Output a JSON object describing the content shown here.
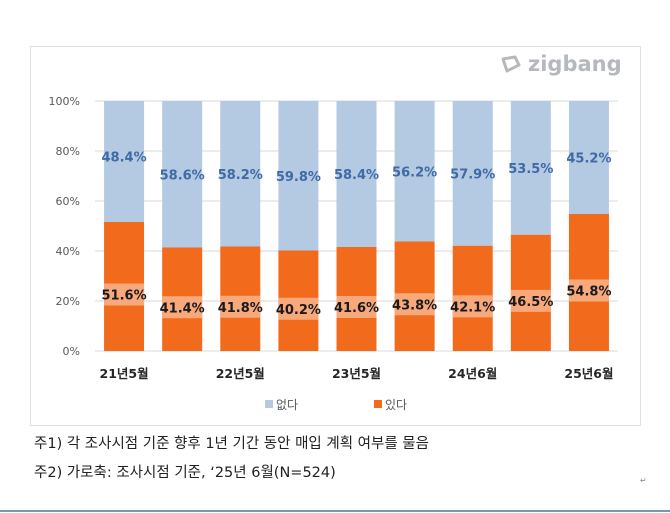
{
  "logo": {
    "text": "zigbang"
  },
  "chart_data": {
    "type": "bar",
    "stacked": true,
    "categories": [
      "21년5월",
      "",
      "22년5월",
      "",
      "23년5월",
      "",
      "24년6월",
      "",
      "25년6월"
    ],
    "series": [
      {
        "name": "있다",
        "color": "#f26b1d",
        "values": [
          51.6,
          41.4,
          41.8,
          40.2,
          41.6,
          43.8,
          42.1,
          46.5,
          54.8
        ],
        "labels": [
          "51.6%",
          "41.4%",
          "41.8%",
          "40.2%",
          "41.6%",
          "43.8%",
          "42.1%",
          "46.5%",
          "54.8%"
        ]
      },
      {
        "name": "없다",
        "color": "#b4c9e2",
        "values": [
          48.4,
          58.6,
          58.2,
          59.8,
          58.4,
          56.2,
          57.9,
          53.5,
          45.2
        ],
        "labels": [
          "48.4%",
          "58.6%",
          "58.2%",
          "59.8%",
          "58.4%",
          "56.2%",
          "57.9%",
          "53.5%",
          "45.2%"
        ]
      }
    ],
    "yticks": [
      "0%",
      "20%",
      "40%",
      "60%",
      "80%",
      "100%"
    ],
    "ylim": [
      0,
      100
    ],
    "legend": [
      "없다",
      "있다"
    ],
    "legend_position": "bottom"
  },
  "notes": [
    "주1) 각 조사시점 기준 향후 1년 기간 동안 매입 계획 여부를 물음",
    "주2) 가로축: 조사시점 기준, ‘25년 6월(N=524)"
  ],
  "mark": "↵"
}
